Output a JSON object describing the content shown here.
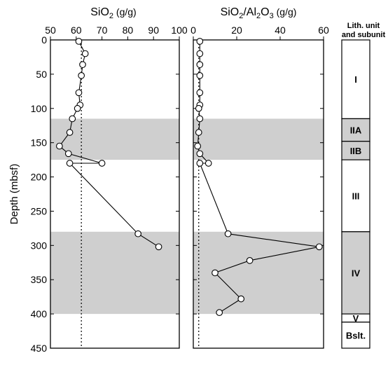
{
  "chart_data": [
    {
      "type": "line",
      "title": "SiO2 (g/g)",
      "title_main": "SiO",
      "title_sub": "2",
      "title_unit": " (g/g)",
      "ylabel": "Depth (mbsf)",
      "xlim": [
        50,
        100
      ],
      "ylim": [
        0,
        450
      ],
      "y_inverted": true,
      "x_ticks": [
        50,
        60,
        70,
        80,
        90,
        100
      ],
      "y_ticks": [
        0,
        50,
        100,
        150,
        200,
        250,
        300,
        350,
        400,
        450
      ],
      "reference_line_x": 62,
      "series": [
        {
          "x": [
            61,
            63.5,
            62.5,
            62,
            61,
            61.5,
            60.5,
            58.5,
            57.5,
            53.5,
            57,
            70,
            57.5,
            84,
            92
          ],
          "y": [
            2,
            20,
            36,
            52,
            77,
            95,
            100,
            115,
            135,
            155,
            166,
            180,
            180,
            283,
            302
          ]
        }
      ]
    },
    {
      "type": "line",
      "title": "SiO2/Al2O3 (g/g)",
      "title_parts": [
        "SiO",
        "2",
        "/Al",
        "2",
        "O",
        "3",
        " (g/g)"
      ],
      "xlim": [
        0,
        60
      ],
      "ylim": [
        0,
        450
      ],
      "y_inverted": true,
      "x_ticks": [
        0,
        20,
        40,
        60
      ],
      "reference_line_x": 2.5,
      "series": [
        {
          "x": [
            3,
            3,
            3,
            3,
            3,
            3,
            2.5,
            3,
            2.5,
            2,
            3,
            7,
            3,
            16,
            58,
            26,
            10,
            22,
            12
          ],
          "y": [
            2,
            20,
            36,
            52,
            77,
            95,
            100,
            115,
            135,
            155,
            166,
            180,
            180,
            283,
            302,
            322,
            340,
            378,
            398
          ]
        }
      ]
    }
  ],
  "shaded_intervals": [
    [
      115,
      175
    ],
    [
      280,
      400
    ]
  ],
  "lithology": {
    "header_line1": "Lith. unit",
    "header_line2": "and subunit",
    "units": [
      {
        "label": "I",
        "top": 0,
        "bottom": 115,
        "shaded": false
      },
      {
        "label": "IIA",
        "top": 115,
        "bottom": 148,
        "shaded": true
      },
      {
        "label": "IIB",
        "top": 148,
        "bottom": 175,
        "shaded": true
      },
      {
        "label": "III",
        "top": 175,
        "bottom": 280,
        "shaded": false
      },
      {
        "label": "IV",
        "top": 280,
        "bottom": 400,
        "shaded": true
      },
      {
        "label": "V",
        "top": 400,
        "bottom": 412,
        "shaded": false
      },
      {
        "label": "Bslt.",
        "top": 412,
        "bottom": 450,
        "shaded": false
      }
    ]
  },
  "colors": {
    "shade": "#cfcfcf",
    "line": "#000000",
    "marker_fill": "#ffffff"
  }
}
